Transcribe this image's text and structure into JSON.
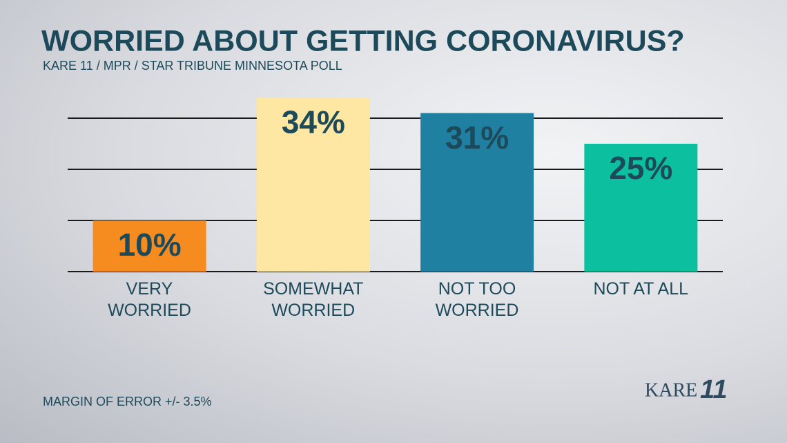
{
  "chart_data": {
    "type": "bar",
    "title": "WORRIED ABOUT GETTING CORONAVIRUS?",
    "subtitle": "KARE 11 / MPR / STAR TRIBUNE MINNESOTA POLL",
    "footnote": "MARGIN OF ERROR +/- 3.5%",
    "logo": {
      "text": "KARE",
      "number": "11"
    },
    "categories": [
      "VERY\nWORRIED",
      "SOMEWHAT\nWORRIED",
      "NOT TOO\nWORRIED",
      "NOT AT ALL"
    ],
    "values": [
      10,
      34,
      31,
      25
    ],
    "value_labels": [
      "10%",
      "34%",
      "31%",
      "25%"
    ],
    "colors": [
      "#f68b1f",
      "#fde7a3",
      "#1f80a2",
      "#0cbf9f"
    ],
    "ylim": [
      0,
      40
    ],
    "yticks": [
      0,
      10,
      20,
      30
    ],
    "grid": true
  }
}
